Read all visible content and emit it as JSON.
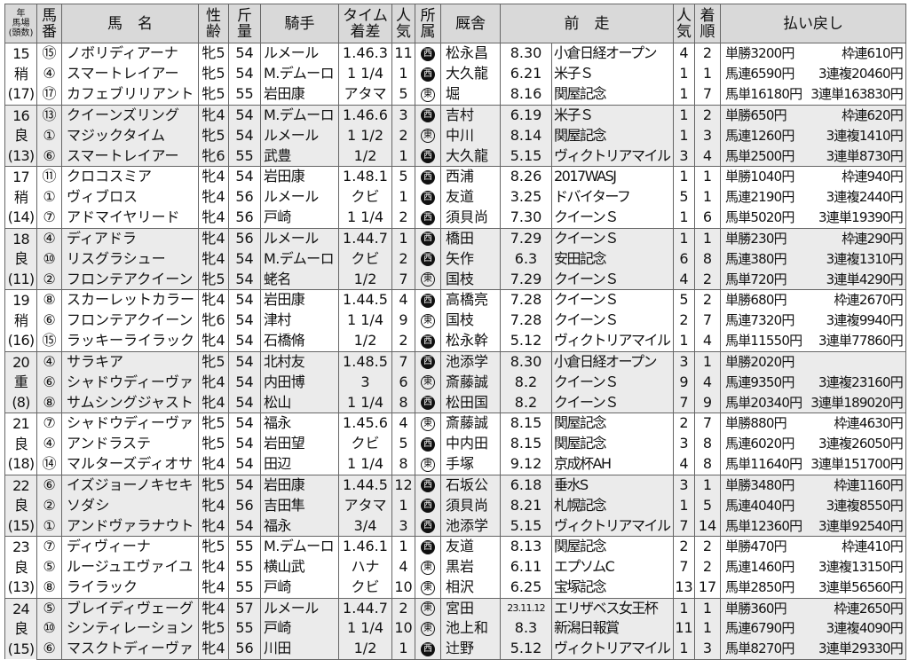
{
  "header": {
    "year_lines": [
      "年",
      "馬場",
      "(頭数)"
    ],
    "num": [
      "馬",
      "番"
    ],
    "name": "馬　名",
    "sex_age": [
      "性",
      "齢"
    ],
    "weight": [
      "斤",
      "量"
    ],
    "jockey": "騎手",
    "time": [
      "タイム",
      "着差"
    ],
    "popularity": [
      "人",
      "気"
    ],
    "affiliation": [
      "所",
      "属"
    ],
    "stable": "厩舎",
    "previous_race": "前　走",
    "prev_pop": [
      "人",
      "気"
    ],
    "prev_finish": [
      "着",
      "順"
    ],
    "payout": "払い戻し"
  },
  "races": [
    {
      "year": "15",
      "track": "稍",
      "field": "(17)",
      "horses": [
        {
          "num": "⑮",
          "name": "ノボリディアーナ",
          "sex": "牝5",
          "wt": "54",
          "jockey": "ルメール",
          "time": "1.46.3",
          "pop": "11",
          "aff": "西",
          "stable": "松永昌",
          "pdate": "8.30",
          "prace": "小倉日経オープン",
          "ppop": "4",
          "pfin": "2"
        },
        {
          "num": "④",
          "name": "スマートレイアー",
          "sex": "牝5",
          "wt": "54",
          "jockey": "M.デムーロ",
          "time": "1 1/4",
          "pop": "1",
          "aff": "西",
          "stable": "大久龍",
          "pdate": "6.21",
          "prace": "米子Ｓ",
          "ppop": "1",
          "pfin": "1"
        },
        {
          "num": "⑰",
          "name": "カフェブリリアント",
          "sex": "牝5",
          "wt": "55",
          "jockey": "岩田康",
          "time": "アタマ",
          "pop": "5",
          "aff": "東",
          "stable": "堀",
          "pdate": "8.16",
          "prace": "関屋記念",
          "ppop": "1",
          "pfin": "7"
        }
      ],
      "payouts": [
        [
          "単勝3200円",
          "枠連610円"
        ],
        [
          "馬連6590円",
          "3連複20460円"
        ],
        [
          "馬単16180円",
          "3連単163830円"
        ]
      ]
    },
    {
      "year": "16",
      "track": "良",
      "field": "(13)",
      "horses": [
        {
          "num": "⑬",
          "name": "クイーンズリング",
          "sex": "牝4",
          "wt": "54",
          "jockey": "M.デムーロ",
          "time": "1.46.6",
          "pop": "3",
          "aff": "西",
          "stable": "吉村",
          "pdate": "6.19",
          "prace": "米子Ｓ",
          "ppop": "1",
          "pfin": "2"
        },
        {
          "num": "①",
          "name": "マジックタイム",
          "sex": "牝5",
          "wt": "54",
          "jockey": "ルメール",
          "time": "1 1/2",
          "pop": "2",
          "aff": "東",
          "stable": "中川",
          "pdate": "8.14",
          "prace": "関屋記念",
          "ppop": "1",
          "pfin": "3"
        },
        {
          "num": "⑥",
          "name": "スマートレイアー",
          "sex": "牝6",
          "wt": "55",
          "jockey": "武豊",
          "time": "1/2",
          "pop": "1",
          "aff": "西",
          "stable": "大久龍",
          "pdate": "5.15",
          "prace": "ヴィクトリアマイル",
          "ppop": "3",
          "pfin": "4"
        }
      ],
      "payouts": [
        [
          "単勝650円",
          "枠連620円"
        ],
        [
          "馬連1260円",
          "3連複1410円"
        ],
        [
          "馬単2500円",
          "3連単8730円"
        ]
      ]
    },
    {
      "year": "17",
      "track": "稍",
      "field": "(14)",
      "horses": [
        {
          "num": "⑪",
          "name": "クロコスミア",
          "sex": "牝4",
          "wt": "54",
          "jockey": "岩田康",
          "time": "1.48.1",
          "pop": "5",
          "aff": "西",
          "stable": "西浦",
          "pdate": "8.26",
          "prace": "2017WASJ",
          "ppop": "1",
          "pfin": "1"
        },
        {
          "num": "①",
          "name": "ヴィブロス",
          "sex": "牝4",
          "wt": "56",
          "jockey": "ルメール",
          "time": "クビ",
          "pop": "1",
          "aff": "西",
          "stable": "友道",
          "pdate": "3.25",
          "prace": "ドバイターフ",
          "ppop": "5",
          "pfin": "1"
        },
        {
          "num": "⑦",
          "name": "アドマイヤリード",
          "sex": "牝4",
          "wt": "56",
          "jockey": "戸崎",
          "time": "1 1/4",
          "pop": "2",
          "aff": "西",
          "stable": "須貝尚",
          "pdate": "7.30",
          "prace": "クイーンＳ",
          "ppop": "1",
          "pfin": "6"
        }
      ],
      "payouts": [
        [
          "単勝1040円",
          "枠連940円"
        ],
        [
          "馬連2190円",
          "3連複2440円"
        ],
        [
          "馬単5020円",
          "3連単19390円"
        ]
      ]
    },
    {
      "year": "18",
      "track": "良",
      "field": "(11)",
      "horses": [
        {
          "num": "④",
          "name": "ディアドラ",
          "sex": "牝4",
          "wt": "56",
          "jockey": "ルメール",
          "time": "1.44.7",
          "pop": "1",
          "aff": "西",
          "stable": "橋田",
          "pdate": "7.29",
          "prace": "クイーンＳ",
          "ppop": "1",
          "pfin": "1"
        },
        {
          "num": "⑩",
          "name": "リスグラシュー",
          "sex": "牝4",
          "wt": "54",
          "jockey": "M.デムーロ",
          "time": "クビ",
          "pop": "2",
          "aff": "西",
          "stable": "矢作",
          "pdate": "6.3",
          "prace": "安田記念",
          "ppop": "6",
          "pfin": "8"
        },
        {
          "num": "②",
          "name": "フロンテアクイーン",
          "sex": "牝5",
          "wt": "54",
          "jockey": "蛯名",
          "time": "1/2",
          "pop": "7",
          "aff": "東",
          "stable": "国枝",
          "pdate": "7.29",
          "prace": "クイーンＳ",
          "ppop": "4",
          "pfin": "2"
        }
      ],
      "payouts": [
        [
          "単勝230円",
          "枠連290円"
        ],
        [
          "馬連380円",
          "3連複1310円"
        ],
        [
          "馬単720円",
          "3連単4290円"
        ]
      ]
    },
    {
      "year": "19",
      "track": "稍",
      "field": "(16)",
      "horses": [
        {
          "num": "⑧",
          "name": "スカーレットカラー",
          "sex": "牝4",
          "wt": "54",
          "jockey": "岩田康",
          "time": "1.44.5",
          "pop": "4",
          "aff": "西",
          "stable": "高橋亮",
          "pdate": "7.28",
          "prace": "クイーンＳ",
          "ppop": "5",
          "pfin": "2"
        },
        {
          "num": "⑥",
          "name": "フロンテアクイーン",
          "sex": "牝6",
          "wt": "54",
          "jockey": "津村",
          "time": "1 1/4",
          "pop": "9",
          "aff": "東",
          "stable": "国枝",
          "pdate": "7.28",
          "prace": "クイーンＳ",
          "ppop": "2",
          "pfin": "7"
        },
        {
          "num": "⑮",
          "name": "ラッキーライラック",
          "sex": "牝4",
          "wt": "54",
          "jockey": "石橋脩",
          "time": "1/2",
          "pop": "2",
          "aff": "西",
          "stable": "松永幹",
          "pdate": "5.12",
          "prace": "ヴィクトリアマイル",
          "ppop": "1",
          "pfin": "4"
        }
      ],
      "payouts": [
        [
          "単勝680円",
          "枠連2670円"
        ],
        [
          "馬連7320円",
          "3連複9940円"
        ],
        [
          "馬単11550円",
          "3連単77860円"
        ]
      ]
    },
    {
      "year": "20",
      "track": "重",
      "field": "(8)",
      "horses": [
        {
          "num": "④",
          "name": "サラキア",
          "sex": "牝5",
          "wt": "54",
          "jockey": "北村友",
          "time": "1.48.5",
          "pop": "7",
          "aff": "西",
          "stable": "池添学",
          "pdate": "8.30",
          "prace": "小倉日経オープン",
          "ppop": "3",
          "pfin": "1"
        },
        {
          "num": "⑥",
          "name": "シャドウディーヴァ",
          "sex": "牝4",
          "wt": "54",
          "jockey": "内田博",
          "time": "3",
          "pop": "6",
          "aff": "東",
          "stable": "斎藤誠",
          "pdate": "8.2",
          "prace": "クイーンＳ",
          "ppop": "9",
          "pfin": "4"
        },
        {
          "num": "⑧",
          "name": "サムシングジャスト",
          "sex": "牝4",
          "wt": "54",
          "jockey": "松山",
          "time": "1 1/4",
          "pop": "8",
          "aff": "西",
          "stable": "松田国",
          "pdate": "8.2",
          "prace": "クイーンＳ",
          "ppop": "7",
          "pfin": "9"
        }
      ],
      "payouts": [
        [
          "単勝2020円",
          ""
        ],
        [
          "馬連9350円",
          "3連複23160円"
        ],
        [
          "馬単20340円",
          "3連単189020円"
        ]
      ]
    },
    {
      "year": "21",
      "track": "良",
      "field": "(18)",
      "horses": [
        {
          "num": "⑦",
          "name": "シャドウディーヴァ",
          "sex": "牝5",
          "wt": "54",
          "jockey": "福永",
          "time": "1.45.6",
          "pop": "4",
          "aff": "東",
          "stable": "斎藤誠",
          "pdate": "8.15",
          "prace": "関屋記念",
          "ppop": "2",
          "pfin": "7"
        },
        {
          "num": "④",
          "name": "アンドラステ",
          "sex": "牝5",
          "wt": "54",
          "jockey": "岩田望",
          "time": "クビ",
          "pop": "5",
          "aff": "西",
          "stable": "中内田",
          "pdate": "8.15",
          "prace": "関屋記念",
          "ppop": "3",
          "pfin": "8"
        },
        {
          "num": "⑭",
          "name": "マルターズディオサ",
          "sex": "牝4",
          "wt": "54",
          "jockey": "田辺",
          "time": "1 1/4",
          "pop": "8",
          "aff": "東",
          "stable": "手塚",
          "pdate": "9.12",
          "prace": "京成杯AH",
          "ppop": "4",
          "pfin": "8"
        }
      ],
      "payouts": [
        [
          "単勝880円",
          "枠連4630円"
        ],
        [
          "馬連6020円",
          "3連複26050円"
        ],
        [
          "馬単11640円",
          "3連単151700円"
        ]
      ]
    },
    {
      "year": "22",
      "track": "良",
      "field": "(15)",
      "horses": [
        {
          "num": "⑥",
          "name": "イズジョーノキセキ",
          "sex": "牝5",
          "wt": "54",
          "jockey": "岩田康",
          "time": "1.44.5",
          "pop": "12",
          "aff": "西",
          "stable": "石坂公",
          "pdate": "6.18",
          "prace": "垂水S",
          "ppop": "3",
          "pfin": "1"
        },
        {
          "num": "②",
          "name": "ソダシ",
          "sex": "牝4",
          "wt": "56",
          "jockey": "吉田隼",
          "time": "アタマ",
          "pop": "1",
          "aff": "西",
          "stable": "須貝尚",
          "pdate": "8.21",
          "prace": "札幌記念",
          "ppop": "1",
          "pfin": "5"
        },
        {
          "num": "①",
          "name": "アンドヴァラナウト",
          "sex": "牝4",
          "wt": "54",
          "jockey": "福永",
          "time": "3/4",
          "pop": "3",
          "aff": "西",
          "stable": "池添学",
          "pdate": "5.15",
          "prace": "ヴィクトリアマイル",
          "ppop": "7",
          "pfin": "14"
        }
      ],
      "payouts": [
        [
          "単勝3480円",
          "枠連1160円"
        ],
        [
          "馬連4040円",
          "3連複8550円"
        ],
        [
          "馬単12360円",
          "3連単92540円"
        ]
      ]
    },
    {
      "year": "23",
      "track": "良",
      "field": "(13)",
      "horses": [
        {
          "num": "⑦",
          "name": "ディヴィーナ",
          "sex": "牝5",
          "wt": "55",
          "jockey": "M.デムーロ",
          "time": "1.46.1",
          "pop": "1",
          "aff": "西",
          "stable": "友道",
          "pdate": "8.13",
          "prace": "関屋記念",
          "ppop": "2",
          "pfin": "2"
        },
        {
          "num": "⑤",
          "name": "ルージュエヴァイユ",
          "sex": "牝4",
          "wt": "55",
          "jockey": "横山武",
          "time": "ハナ",
          "pop": "4",
          "aff": "東",
          "stable": "黒岩",
          "pdate": "6.11",
          "prace": "エプソムC",
          "ppop": "7",
          "pfin": "2"
        },
        {
          "num": "⑧",
          "name": "ライラック",
          "sex": "牝4",
          "wt": "55",
          "jockey": "戸崎",
          "time": "クビ",
          "pop": "10",
          "aff": "東",
          "stable": "相沢",
          "pdate": "6.25",
          "prace": "宝塚記念",
          "ppop": "13",
          "pfin": "17"
        }
      ],
      "payouts": [
        [
          "単勝470円",
          "枠連410円"
        ],
        [
          "馬連1460円",
          "3連複13150円"
        ],
        [
          "馬単2850円",
          "3連単56560円"
        ]
      ]
    },
    {
      "year": "24",
      "track": "良",
      "field": "(15)",
      "horses": [
        {
          "num": "⑤",
          "name": "ブレイディヴェーグ",
          "sex": "牝4",
          "wt": "57",
          "jockey": "ルメール",
          "time": "1.44.7",
          "pop": "2",
          "aff": "東",
          "stable": "宮田",
          "pdate": "23.11.12",
          "prace": "エリザベス女王杯",
          "ppop": "1",
          "pfin": "1"
        },
        {
          "num": "⑩",
          "name": "シンティレーション",
          "sex": "牝5",
          "wt": "55",
          "jockey": "戸崎",
          "time": "1 1/4",
          "pop": "10",
          "aff": "東",
          "stable": "池上和",
          "pdate": "8.3",
          "prace": "新潟日報賞",
          "ppop": "11",
          "pfin": "1"
        },
        {
          "num": "⑥",
          "name": "マスクトディーヴァ",
          "sex": "牝4",
          "wt": "56",
          "jockey": "川田",
          "time": "1/2",
          "pop": "1",
          "aff": "西",
          "stable": "辻野",
          "pdate": "5.12",
          "prace": "ヴィクトリアマイル",
          "ppop": "1",
          "pfin": "3"
        }
      ],
      "payouts": [
        [
          "単勝360円",
          "枠連2650円"
        ],
        [
          "馬連6790円",
          "3連複4090円"
        ],
        [
          "馬単8270円",
          "3連単29330円"
        ]
      ]
    }
  ]
}
